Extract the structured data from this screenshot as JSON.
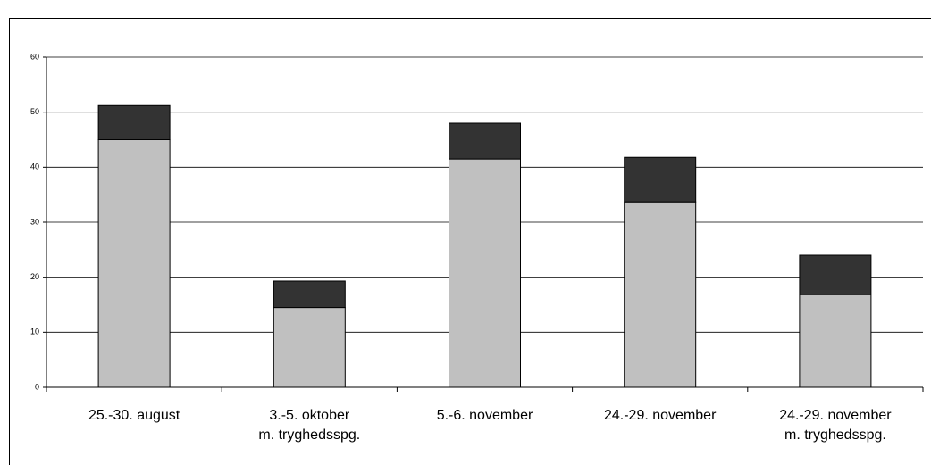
{
  "chart_data": {
    "type": "stacked_bar",
    "categories": [
      [
        "25.-30. august"
      ],
      [
        "3.-5. oktober",
        "m. tryghedsspg."
      ],
      [
        "5.-6. november"
      ],
      [
        "24.-29. november"
      ],
      [
        "24.-29. november",
        "m. tryghedsspg."
      ]
    ],
    "series": [
      {
        "color": "#c0c0c0",
        "values": [
          45,
          14.5,
          41.5,
          33.7,
          16.8
        ]
      },
      {
        "color": "#333333",
        "values": [
          6.2,
          4.8,
          6.5,
          8.1,
          7.2
        ]
      }
    ],
    "ylim": [
      0,
      60
    ],
    "yticks": [
      0,
      10,
      20,
      30,
      40,
      50,
      60
    ],
    "grid": true
  }
}
